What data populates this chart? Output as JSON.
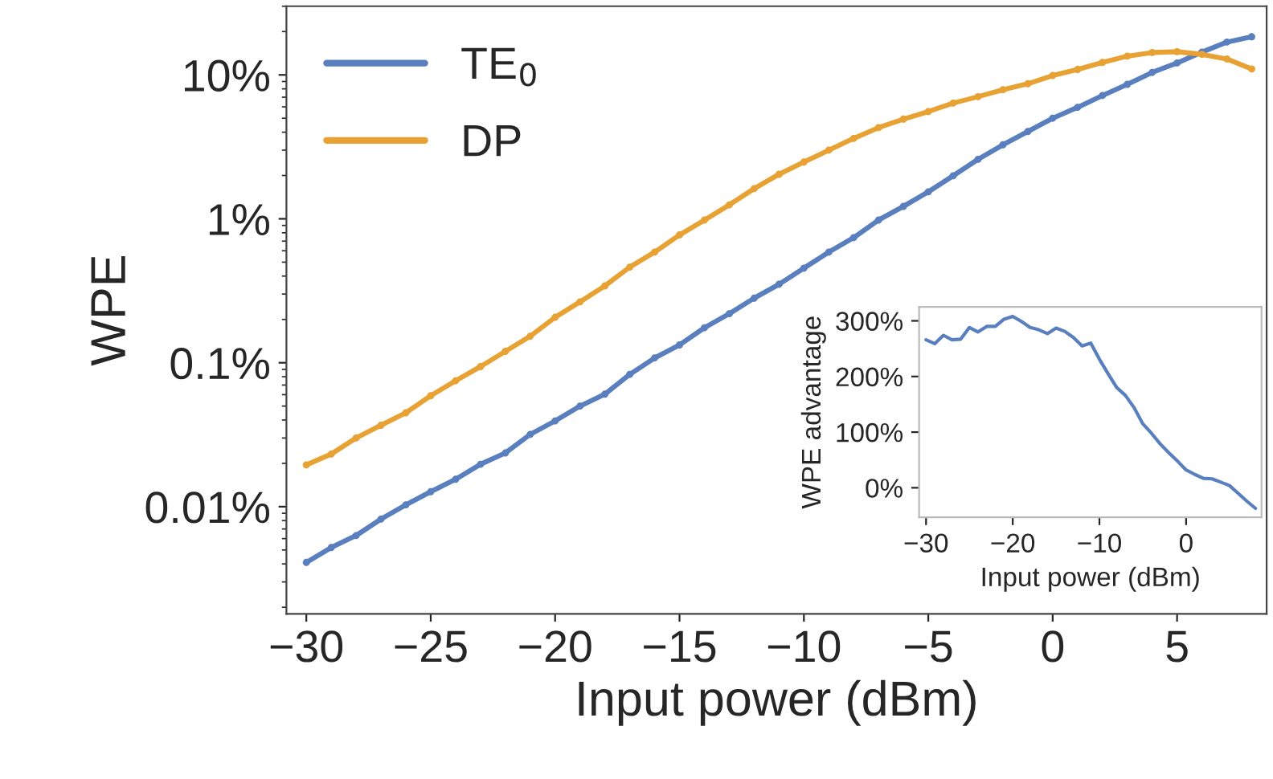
{
  "chart_data": [
    {
      "type": "line",
      "xlabel": "Input power (dBm)",
      "ylabel": "WPE",
      "log": "y",
      "marker": "circle",
      "line_style": "solid",
      "legend": "top left",
      "grid": false,
      "x": [
        -30,
        -29,
        -28,
        -27,
        -26,
        -25,
        -24,
        -23,
        -22,
        -21,
        -20,
        -19,
        -18,
        -17,
        -16,
        -15,
        -14,
        -13,
        -12,
        -11,
        -10,
        -9,
        -8,
        -7,
        -6,
        -5,
        -4,
        -3,
        -2,
        -1,
        0,
        1,
        2,
        3,
        4,
        5,
        6,
        7,
        8
      ],
      "xlim": [
        -30.8,
        8.6
      ],
      "xticks": [
        {
          "value": -30,
          "label": "−30"
        },
        {
          "value": -25,
          "label": "−25"
        },
        {
          "value": -20,
          "label": "−20"
        },
        {
          "value": -15,
          "label": "−15"
        },
        {
          "value": -10,
          "label": "−10"
        },
        {
          "value": -5,
          "label": "−5"
        },
        0,
        5
      ],
      "ylim": [
        0.0018,
        30
      ],
      "yticks": [
        {
          "value": 0.01,
          "label": "0.01%"
        },
        {
          "value": 0.1,
          "label": "0.1%"
        },
        {
          "value": 1,
          "label": "1%"
        },
        {
          "value": 10,
          "label": "10%"
        }
      ],
      "series": [
        {
          "name": "TE$_{0}$",
          "color": "#5a7fbf",
          "values": [
            0.0041,
            0.0052,
            0.0063,
            0.0082,
            0.0103,
            0.0127,
            0.0155,
            0.0197,
            0.0236,
            0.0318,
            0.0394,
            0.05,
            0.0605,
            0.083,
            0.108,
            0.133,
            0.175,
            0.219,
            0.281,
            0.351,
            0.454,
            0.587,
            0.74,
            0.98,
            1.22,
            1.54,
            1.99,
            2.59,
            3.27,
            4.04,
            5.0,
            5.95,
            7.19,
            8.6,
            10.4,
            12.1,
            14.4,
            16.9,
            18.4
          ]
        },
        {
          "name": "DP",
          "color": "#e8a233",
          "values": [
            0.0195,
            0.0232,
            0.03,
            0.0368,
            0.0449,
            0.059,
            0.075,
            0.094,
            0.12,
            0.153,
            0.207,
            0.265,
            0.342,
            0.462,
            0.587,
            0.773,
            0.98,
            1.25,
            1.62,
            2.04,
            2.48,
            3.0,
            3.62,
            4.3,
            4.93,
            5.56,
            6.37,
            7.06,
            7.89,
            8.68,
            9.9,
            10.9,
            12.2,
            13.5,
            14.3,
            14.5,
            13.9,
            12.9,
            11.0
          ]
        }
      ]
    },
    {
      "type": "line",
      "xlabel": "Input power (dBm)",
      "ylabel": "WPE advantage",
      "marker": "none",
      "line_style": "solid",
      "grid": false,
      "x": [
        -30,
        -29,
        -28,
        -27,
        -26,
        -25,
        -24,
        -23,
        -22,
        -21,
        -20,
        -19,
        -18,
        -17,
        -16,
        -15,
        -14,
        -13,
        -12,
        -11,
        -10,
        -9,
        -8,
        -7,
        -6,
        -5,
        -4,
        -3,
        -2,
        -1,
        0,
        1,
        2,
        3,
        4,
        5,
        6,
        7,
        8
      ],
      "xlim": [
        -30.8,
        8.7
      ],
      "xticks": [
        {
          "value": -30,
          "label": "−30"
        },
        {
          "value": -20,
          "label": "−20"
        },
        {
          "value": -10,
          "label": "−10"
        },
        0
      ],
      "ylim": [
        -53,
        325
      ],
      "yticks": [
        {
          "value": 0,
          "label": "0%"
        },
        {
          "value": 100,
          "label": "100%"
        },
        {
          "value": 200,
          "label": "200%"
        },
        {
          "value": 300,
          "label": "300%"
        }
      ],
      "series": [
        {
          "color": "#5a7fbf",
          "values": [
            266,
            259,
            274,
            266,
            267,
            288,
            280,
            290,
            290,
            303,
            308,
            299,
            288,
            284,
            277,
            287,
            281,
            270,
            255,
            260,
            231,
            205,
            180,
            166,
            144,
            115,
            98,
            79,
            63,
            48,
            32,
            24,
            17,
            16,
            10,
            4,
            -10,
            -24,
            -37
          ]
        }
      ]
    }
  ]
}
